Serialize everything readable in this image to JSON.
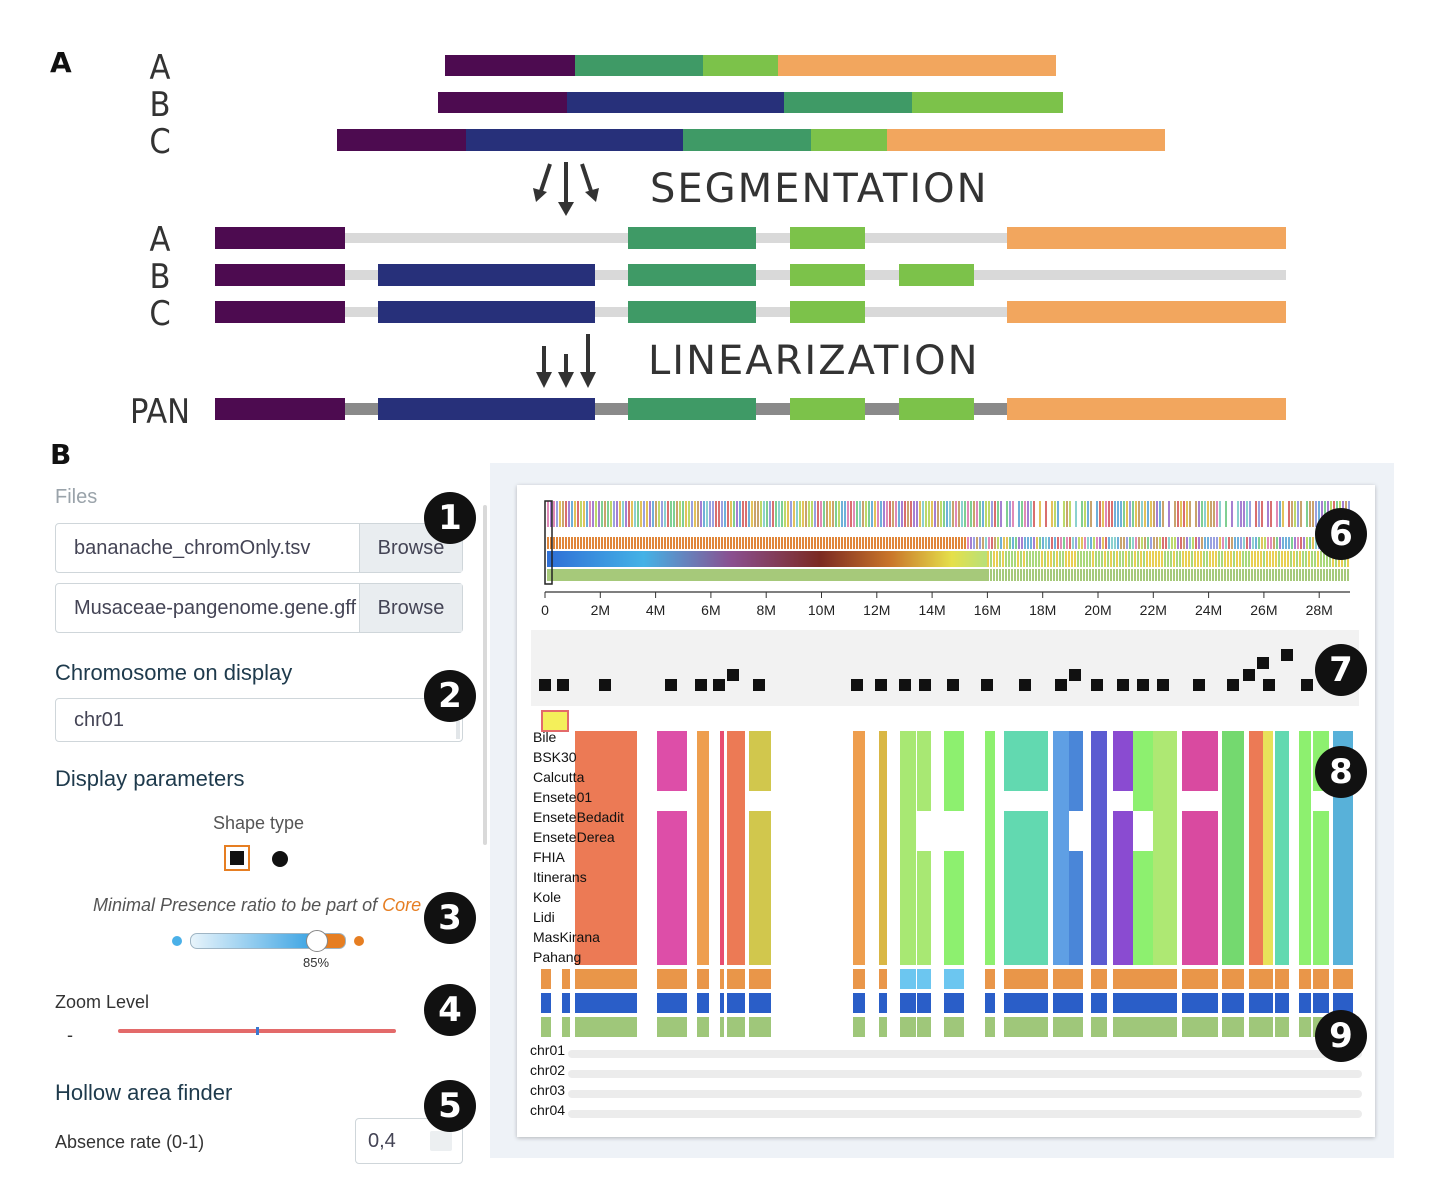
{
  "panel_labels": {
    "a": "A",
    "b": "B"
  },
  "panel_a": {
    "input_labels": [
      "A",
      "B",
      "C"
    ],
    "segmentation_title": "SEGMENTATION",
    "segmented_labels": [
      "A",
      "B",
      "C"
    ],
    "linearization_title": "LINEARIZATION",
    "pan_label": "PAN",
    "colors": {
      "purple": "#4d0b50",
      "navy": "#27307a",
      "teal": "#3f9a66",
      "lime": "#7cc24a",
      "orange": "#f2a65e",
      "grey": "#d9d9d9",
      "pan_grey": "#8a8a8a"
    }
  },
  "sidebar": {
    "files_title": "Files",
    "file1": {
      "value": "bananache_chromOnly.tsv",
      "button": "Browse"
    },
    "file2": {
      "value": "Musaceae-pangenome.gene.gff",
      "button": "Browse"
    },
    "chromosome_title": "Chromosome on display",
    "chromosome_value": "chr01",
    "display_title": "Display parameters",
    "shape_type_label": "Shape type",
    "presence_label": "Minimal Presence ratio to be part of ",
    "presence_core": "Core",
    "presence_value": "85%",
    "zoom_label": "Zoom Level",
    "zoom_minus": "-",
    "hollow_title": "Hollow area finder",
    "absence_label": "Absence rate (0-1)",
    "absence_value": "0,4",
    "accent": "#e67e22"
  },
  "badges": [
    "1",
    "2",
    "3",
    "4",
    "5",
    "6",
    "7",
    "8",
    "9"
  ],
  "viewer": {
    "axis_ticks": [
      "0",
      "2M",
      "4M",
      "6M",
      "8M",
      "10M",
      "12M",
      "14M",
      "16M",
      "18M",
      "20M",
      "22M",
      "24M",
      "26M",
      "28M"
    ],
    "genomes": [
      "Bile",
      "BSK30",
      "Calcutta",
      "Ensete01",
      "EnseteBedadit",
      "EnseteDerea",
      "FHIA",
      "Itinerans",
      "Kole",
      "Lidi",
      "MasKirana",
      "Pahang"
    ],
    "chromosomes": [
      "chr01",
      "chr02",
      "chr03",
      "chr04"
    ]
  }
}
